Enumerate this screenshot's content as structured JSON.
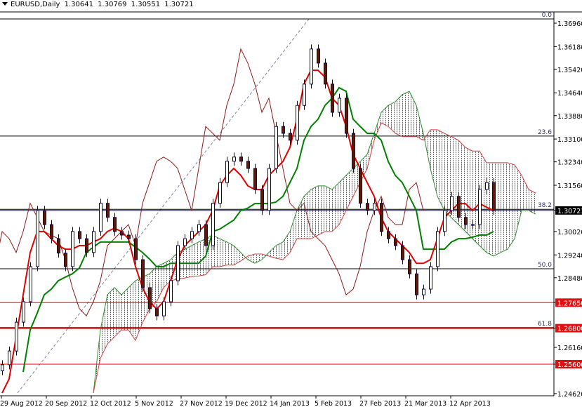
{
  "header": {
    "symbol": "EURUSD,Daily",
    "open": "1.30641",
    "high": "1.30769",
    "low": "1.30551",
    "close": "1.30721"
  },
  "colors": {
    "background": "#ffffff",
    "bull_body": "#ffffff",
    "bull_outline": "#000080",
    "bear_body": "#5a1a10",
    "tenkan": "#e00000",
    "kijun": "#008000",
    "chikou": "#8b1a1a",
    "cloud_bull": "#2e8b2e",
    "cloud_bear": "#d04040",
    "fib": "#000000",
    "level_line": "#e00000",
    "price_line": "#000060"
  },
  "chart_data": {
    "type": "candlestick",
    "title": "EURUSD,Daily",
    "ylim": [
      1.2425,
      1.373
    ],
    "grid": false,
    "y_ticks": [
      "1.36960",
      "1.36180",
      "1.35420",
      "1.34640",
      "1.33880",
      "1.33100",
      "1.32340",
      "1.31560",
      "1.30721",
      "1.30020",
      "1.29240",
      "1.28480",
      "1.27650",
      "1.26800",
      "1.26160",
      "1.25600",
      "1.24620"
    ],
    "x_ticks": [
      "29 Aug 2012",
      "20 Sep 2012",
      "12 Oct 2012",
      "5 Nov 2012",
      "27 Nov 2012",
      "19 Dec 2012",
      "14 Jan 2013",
      "5 Feb 2013",
      "27 Feb 2013",
      "21 Mar 2013",
      "12 Apr 2013"
    ],
    "closes": [
      1.2558,
      1.2604,
      1.27,
      1.2768,
      1.2885,
      1.3072,
      1.3025,
      1.2978,
      1.293,
      1.2885,
      1.3002,
      1.2978,
      1.2932,
      1.3002,
      1.3096,
      1.3049,
      1.3002,
      1.299,
      1.2978,
      1.2908,
      1.2815,
      1.2745,
      1.2721,
      1.2768,
      1.2838,
      1.2955,
      1.2978,
      1.3002,
      1.3025,
      1.2955,
      1.3096,
      1.3165,
      1.3236,
      1.325,
      1.3236,
      1.3212,
      1.3142,
      1.3072,
      1.3212,
      1.3352,
      1.3329,
      1.3306,
      1.3422,
      1.3493,
      1.361,
      1.3563,
      1.3493,
      1.3399,
      1.3446,
      1.3329,
      1.3212,
      1.3096,
      1.3072,
      1.3096,
      1.3002,
      1.2978,
      1.2955,
      1.2908,
      1.2861,
      1.2791,
      1.281,
      1.2885,
      1.3002,
      1.3072,
      1.3119,
      1.3049,
      1.3025,
      1.3025,
      1.3142,
      1.3165,
      1.3072
    ],
    "tenkan": [
      1.2464,
      1.2511,
      1.2651,
      1.2791,
      1.2932,
      1.3002,
      1.3002,
      1.2978,
      1.2955,
      1.2943,
      1.2943,
      1.2955,
      1.2955,
      1.2967,
      1.2978,
      1.3002,
      1.3013,
      1.3002,
      1.2978,
      1.2885,
      1.2815,
      1.2768,
      1.2744,
      1.2768,
      1.2838,
      1.2908,
      1.2955,
      1.2978,
      1.3002,
      1.3025,
      1.3072,
      1.3154,
      1.3189,
      1.3212,
      1.3189,
      1.3154,
      1.3142,
      1.3142,
      1.3189,
      1.3212,
      1.3235,
      1.3282,
      1.3376,
      1.3493,
      1.3539,
      1.3539,
      1.3516,
      1.3446,
      1.3422,
      1.3352,
      1.3259,
      1.3212,
      1.3165,
      1.3119,
      1.3048,
      1.3002,
      1.2978,
      1.2955,
      1.2932,
      1.2896,
      1.2896,
      1.2908,
      1.2978,
      1.3048,
      1.3072,
      1.3095,
      1.3095,
      1.3072,
      1.3095,
      1.3083,
      1.3072
    ],
    "kijun": [
      null,
      null,
      null,
      1.2534,
      1.2674,
      1.273,
      1.2791,
      1.281,
      1.2838,
      1.285,
      1.2861,
      1.288,
      1.2932,
      1.295,
      1.2967,
      1.2967,
      1.2967,
      1.2967,
      1.2967,
      1.295,
      1.2932,
      1.291,
      1.2885,
      1.2885,
      1.2896,
      1.2896,
      1.2896,
      1.2896,
      1.2896,
      1.292,
      1.3002,
      1.301,
      1.3025,
      1.304,
      1.3072,
      1.308,
      1.3095,
      1.3095,
      1.3095,
      1.31,
      1.3119,
      1.3165,
      1.3212,
      1.3306,
      1.3352,
      1.3376,
      1.3422,
      1.3446,
      1.3481,
      1.3469,
      1.3376,
      1.3352,
      1.3329,
      1.3329,
      1.3306,
      1.3235,
      1.3189,
      1.3165,
      1.3119,
      1.3072,
      1.2943,
      1.2943,
      1.2943,
      1.2943,
      1.2967,
      1.2978,
      1.2978,
      1.2983,
      1.299,
      1.299,
      1.3002
    ],
    "span_a": [
      null,
      null,
      null,
      null,
      null,
      null,
      null,
      null,
      null,
      null,
      null,
      null,
      null,
      1.2464,
      1.2674,
      1.2791,
      1.2815,
      1.2791,
      1.2815,
      1.2838,
      1.285,
      1.2861,
      1.2885,
      1.2896,
      1.2908,
      1.2932,
      1.2943,
      1.2955,
      1.2967,
      1.2978,
      1.299,
      1.2978,
      1.2967,
      1.2955,
      1.2932,
      1.2908,
      1.2896,
      1.2908,
      1.2932,
      1.2955,
      1.2967,
      1.3002,
      1.3072,
      1.3119,
      1.3142,
      1.3154,
      1.3154,
      1.3142,
      1.3165,
      1.3189,
      1.3212,
      1.3235,
      1.3259,
      1.3329,
      1.3399,
      1.3422,
      1.3434,
      1.3458,
      1.3469,
      1.3422,
      1.3329,
      1.3212,
      1.3119,
      1.3072,
      1.3048,
      1.3025,
      1.3002,
      1.2978,
      1.2955,
      1.2932,
      1.292,
      1.2932,
      1.2943,
      1.2978,
      1.3072,
      1.3072,
      1.306
    ],
    "span_b": [
      null,
      null,
      null,
      null,
      null,
      null,
      null,
      null,
      null,
      null,
      null,
      null,
      null,
      1.2464,
      1.258,
      1.2627,
      1.2651,
      1.2674,
      1.2674,
      1.2639,
      1.2698,
      1.2744,
      1.2768,
      1.2815,
      1.2838,
      1.2843,
      1.2847,
      1.2852,
      1.2854,
      1.2858,
      1.2885,
      1.2885,
      1.289,
      1.289,
      1.2904,
      1.292,
      1.2927,
      1.2927,
      1.292,
      1.2913,
      1.2908,
      1.2932,
      1.2978,
      1.2978,
      1.2978,
      1.299,
      1.3002,
      1.3002,
      1.3025,
      1.3072,
      1.3119,
      1.3165,
      1.3212,
      1.3306,
      1.3364,
      1.3352,
      1.3329,
      1.3318,
      1.3318,
      1.3318,
      1.3306,
      1.3341,
      1.3341,
      1.3329,
      1.3318,
      1.3306,
      1.3282,
      1.327,
      1.327,
      1.3231,
      1.3231,
      1.3231,
      1.3231,
      1.3224,
      1.3189,
      1.3142,
      1.313
    ],
    "fibonacci": [
      {
        "label": "0.0",
        "price": 1.371
      },
      {
        "label": "23.6",
        "price": 1.332
      },
      {
        "label": "38.2",
        "price": 1.3076
      },
      {
        "label": "50.0",
        "price": 1.2878
      },
      {
        "label": "61.8",
        "price": 1.2682
      }
    ],
    "horizontal_levels": [
      {
        "label": "1.27650",
        "price": 1.2765
      },
      {
        "label": "1.26800",
        "price": 1.268
      },
      {
        "label": "1.25600",
        "price": 1.256
      }
    ],
    "current_price": {
      "label": "1.30721",
      "price": 1.30721
    }
  }
}
